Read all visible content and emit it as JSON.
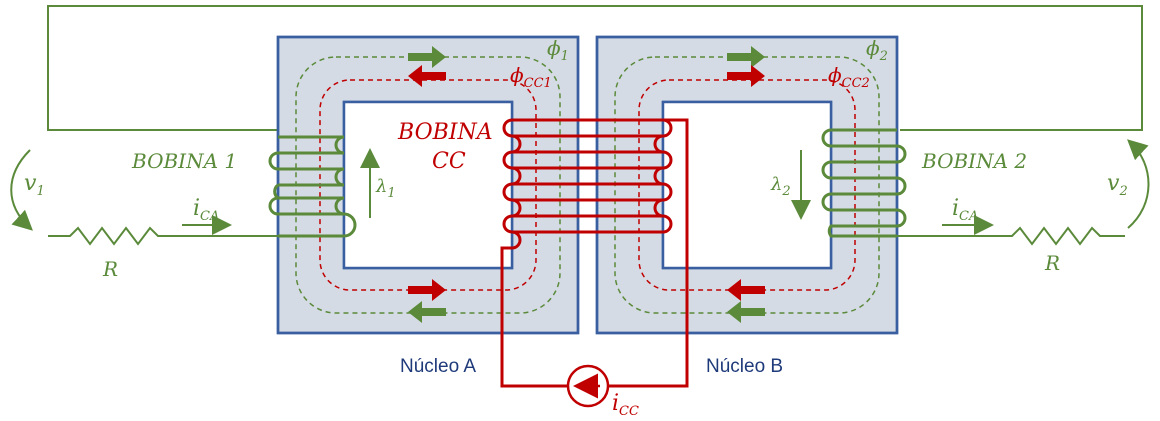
{
  "colors": {
    "core_fill": "#d5dbe5",
    "core_border": "#3a5fa0",
    "ac_green": "#5a8a3a",
    "dc_red": "#c00000",
    "core_label_blue": "#1f3a7a"
  },
  "labels": {
    "coil1": "BOBINA 1",
    "coil2": "BOBINA 2",
    "coil_dc_line1": "BOBINA",
    "coil_dc_line2": "CC",
    "core_a": "Núcleo A",
    "core_b": "Núcleo B",
    "v1_main": "v",
    "v1_sub": "1",
    "v2_main": "v",
    "v2_sub": "2",
    "ica_left_main": "i",
    "ica_left_sub": "CA",
    "ica_right_main": "i",
    "ica_right_sub": "CA",
    "r_left": "R",
    "r_right": "R",
    "lambda1_main": "λ",
    "lambda1_sub": "1",
    "lambda2_main": "λ",
    "lambda2_sub": "2",
    "phi1_main": "ϕ",
    "phi1_sub": "1",
    "phi2_main": "ϕ",
    "phi2_sub": "2",
    "phicc1_main": "ϕ",
    "phicc1_sub": "CC1",
    "phicc2_main": "ϕ",
    "phicc2_sub": "CC2",
    "icc_main": "i",
    "icc_sub": "CC"
  }
}
